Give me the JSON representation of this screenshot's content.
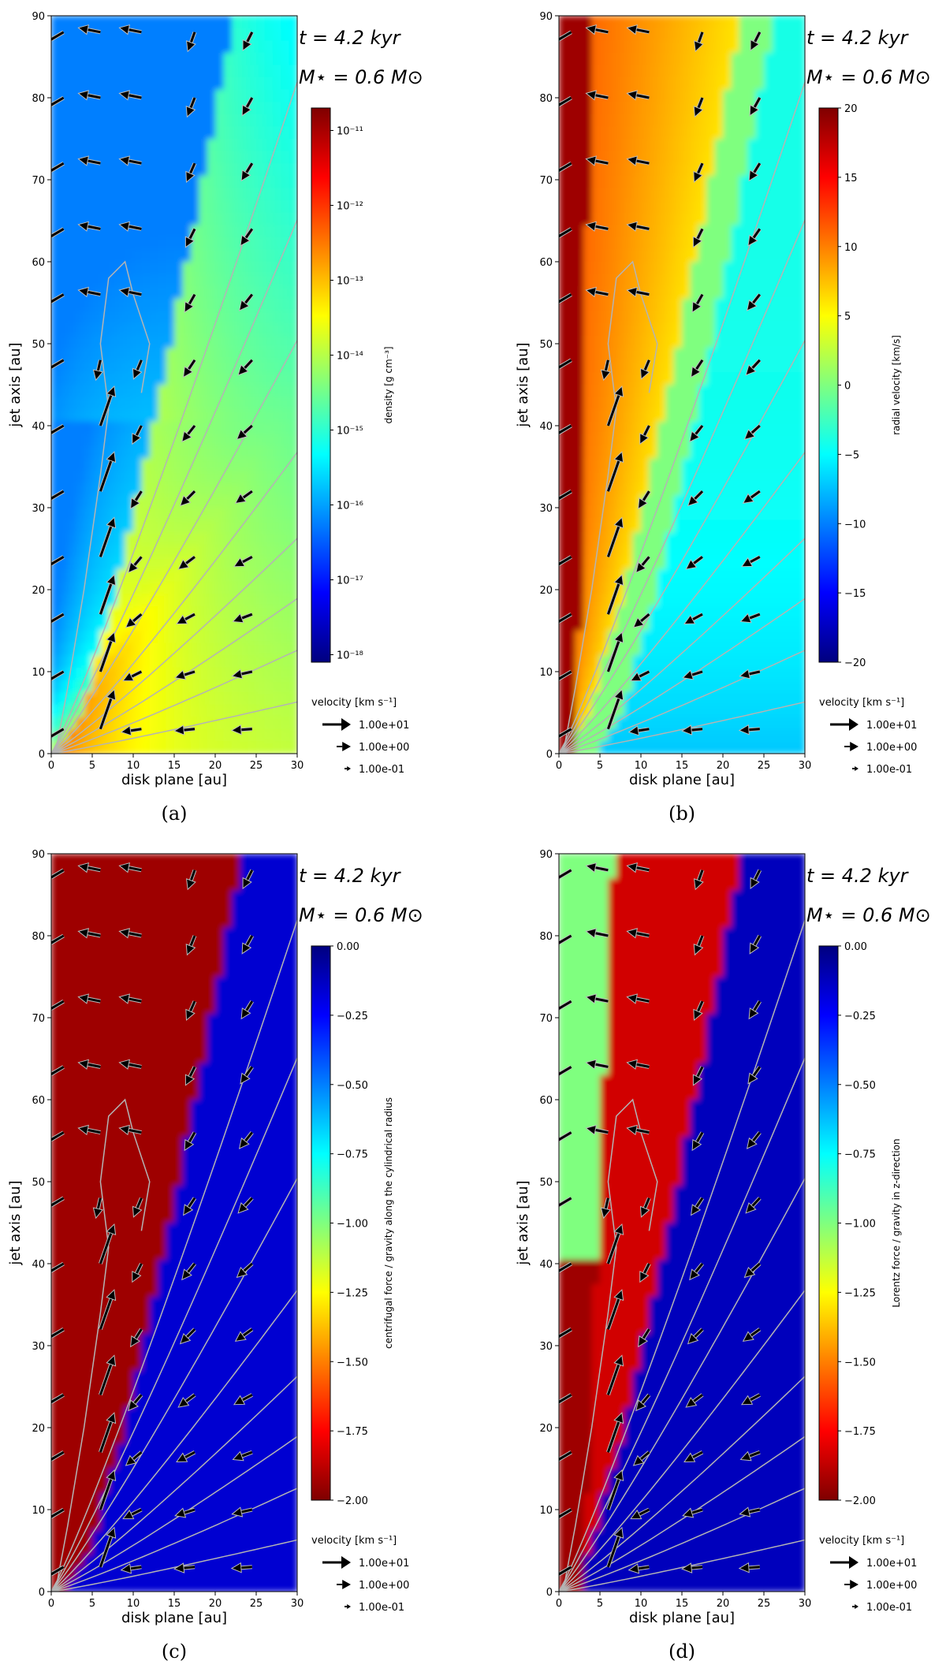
{
  "chart_data": [
    {
      "type": "heatmap",
      "panel_label": "(a)",
      "quantity": "density",
      "time_label": "t = 4.2 kyr",
      "mass_label": "M⋆ = 0.6 M⊙",
      "xlabel": "disk plane [au]",
      "ylabel": "jet axis [au]",
      "xlim": [
        0,
        30
      ],
      "ylim": [
        0,
        90
      ],
      "xticks": [
        0,
        5,
        10,
        15,
        20,
        25,
        30
      ],
      "yticks": [
        0,
        10,
        20,
        30,
        40,
        50,
        60,
        70,
        80,
        90
      ],
      "colorbar": {
        "label": "density [g cm⁻³]",
        "scale": "log",
        "range": [
          1e-18,
          2e-11
        ],
        "tick_labels": [
          "10⁻¹¹",
          "10⁻¹²",
          "10⁻¹³",
          "10⁻¹⁴",
          "10⁻¹⁵",
          "10⁻¹⁶",
          "10⁻¹⁷",
          "10⁻¹⁸"
        ],
        "tick_values": [
          -11,
          -12,
          -13,
          -14,
          -15,
          -16,
          -17,
          -18
        ],
        "vmin": -18.1,
        "vmax": -10.7,
        "colormap": "jet"
      }
    },
    {
      "type": "heatmap",
      "panel_label": "(b)",
      "quantity": "radial velocity",
      "time_label": "t = 4.2 kyr",
      "mass_label": "M⋆ = 0.6 M⊙",
      "xlabel": "disk plane [au]",
      "ylabel": "jet axis [au]",
      "xlim": [
        0,
        30
      ],
      "ylim": [
        0,
        90
      ],
      "xticks": [
        0,
        5,
        10,
        15,
        20,
        25,
        30
      ],
      "yticks": [
        0,
        10,
        20,
        30,
        40,
        50,
        60,
        70,
        80,
        90
      ],
      "colorbar": {
        "label": "radial velocity [km/s]",
        "scale": "linear",
        "range": [
          -20,
          20
        ],
        "tick_labels": [
          "20",
          "15",
          "10",
          "5",
          "0",
          "−5",
          "−10",
          "−15",
          "−20"
        ],
        "tick_values": [
          20,
          15,
          10,
          5,
          0,
          -5,
          -10,
          -15,
          -20
        ],
        "vmin": -20,
        "vmax": 20,
        "colormap": "jet"
      }
    },
    {
      "type": "heatmap",
      "panel_label": "(c)",
      "quantity": "centrifugal force / gravity along the cylindrical radius",
      "time_label": "t = 4.2 kyr",
      "mass_label": "M⋆ = 0.6 M⊙",
      "xlabel": "disk plane [au]",
      "ylabel": "jet axis [au]",
      "xlim": [
        0,
        30
      ],
      "ylim": [
        0,
        90
      ],
      "xticks": [
        0,
        5,
        10,
        15,
        20,
        25,
        30
      ],
      "yticks": [
        0,
        10,
        20,
        30,
        40,
        50,
        60,
        70,
        80,
        90
      ],
      "colorbar": {
        "label": "centrifugal force / gravity along the cylindrical radius",
        "scale": "linear",
        "range": [
          -2.0,
          0.0
        ],
        "tick_labels": [
          "0.00",
          "−0.25",
          "−0.50",
          "−0.75",
          "−1.00",
          "−1.25",
          "−1.50",
          "−1.75",
          "−2.00"
        ],
        "tick_values": [
          0,
          -0.25,
          -0.5,
          -0.75,
          -1.0,
          -1.25,
          -1.5,
          -1.75,
          -2.0
        ],
        "vmin": -2.0,
        "vmax": 0.0,
        "colormap": "jet_r"
      }
    },
    {
      "type": "heatmap",
      "panel_label": "(d)",
      "quantity": "Lorentz force / gravity in z-direction",
      "time_label": "t = 4.2 kyr",
      "mass_label": "M⋆ = 0.6 M⊙",
      "xlabel": "disk plane [au]",
      "ylabel": "jet axis [au]",
      "xlim": [
        0,
        30
      ],
      "ylim": [
        0,
        90
      ],
      "xticks": [
        0,
        5,
        10,
        15,
        20,
        25,
        30
      ],
      "yticks": [
        0,
        10,
        20,
        30,
        40,
        50,
        60,
        70,
        80,
        90
      ],
      "colorbar": {
        "label": "Lorentz force / gravity in z-direction",
        "scale": "linear",
        "range": [
          -2.0,
          0.0
        ],
        "tick_labels": [
          "0.00",
          "−0.25",
          "−0.50",
          "−0.75",
          "−1.00",
          "−1.25",
          "−1.50",
          "−1.75",
          "−2.00"
        ],
        "tick_values": [
          0,
          -0.25,
          -0.5,
          -0.75,
          -1.0,
          -1.25,
          -1.5,
          -1.75,
          -2.0
        ],
        "vmin": -2.0,
        "vmax": 0.0,
        "colormap": "jet_r"
      }
    }
  ],
  "velocity_legend": {
    "title": "velocity [km s⁻¹]",
    "entries": [
      "1.00e+01",
      "1.00e+00",
      "1.00e-01"
    ]
  },
  "colors": {
    "arrow_fill": "#000000",
    "arrow_edge": "#bbbbbb",
    "streamline": "#b4b4b4"
  }
}
